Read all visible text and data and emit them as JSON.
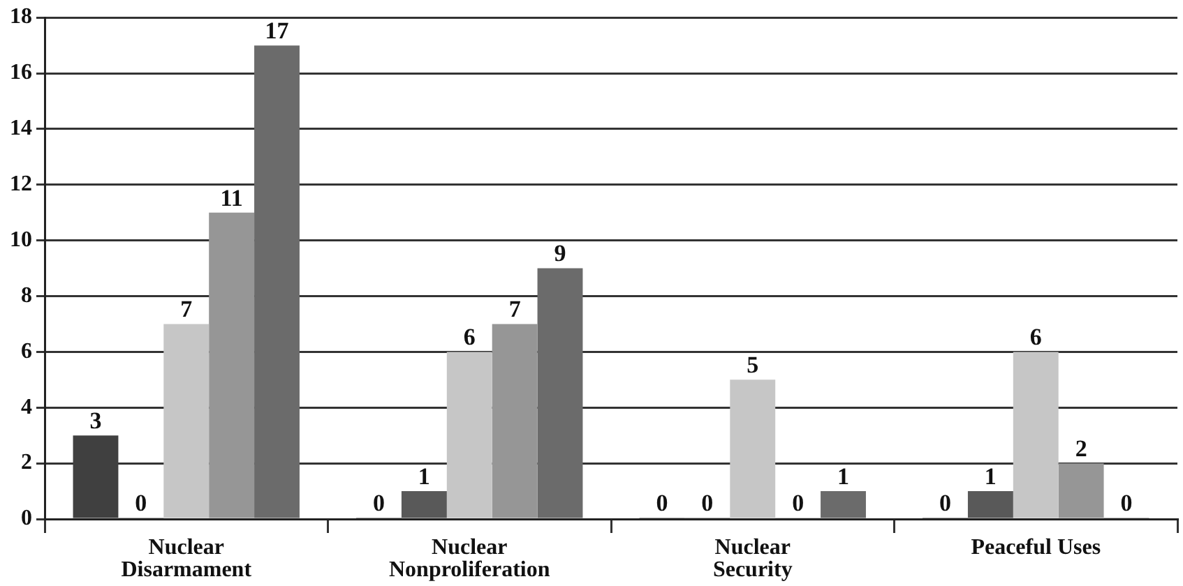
{
  "chart_data": {
    "type": "bar",
    "categories": [
      "Nuclear Disarmament",
      "Nuclear Nonproliferation",
      "Nuclear Security",
      "Peaceful Uses"
    ],
    "series": [
      {
        "color": "#404040",
        "values": [
          3,
          0,
          0,
          0
        ]
      },
      {
        "color": "#595959",
        "values": [
          0,
          1,
          0,
          1
        ]
      },
      {
        "color": "#c6c6c6",
        "values": [
          7,
          6,
          5,
          6
        ]
      },
      {
        "color": "#969696",
        "values": [
          11,
          7,
          0,
          2
        ]
      },
      {
        "color": "#6b6b6b",
        "values": [
          17,
          9,
          1,
          0
        ]
      }
    ],
    "ylim": [
      0,
      18
    ],
    "yticks": [
      0,
      2,
      4,
      6,
      8,
      10,
      12,
      14,
      16,
      18
    ],
    "grid": "y",
    "legend": false,
    "data_labels": true
  }
}
